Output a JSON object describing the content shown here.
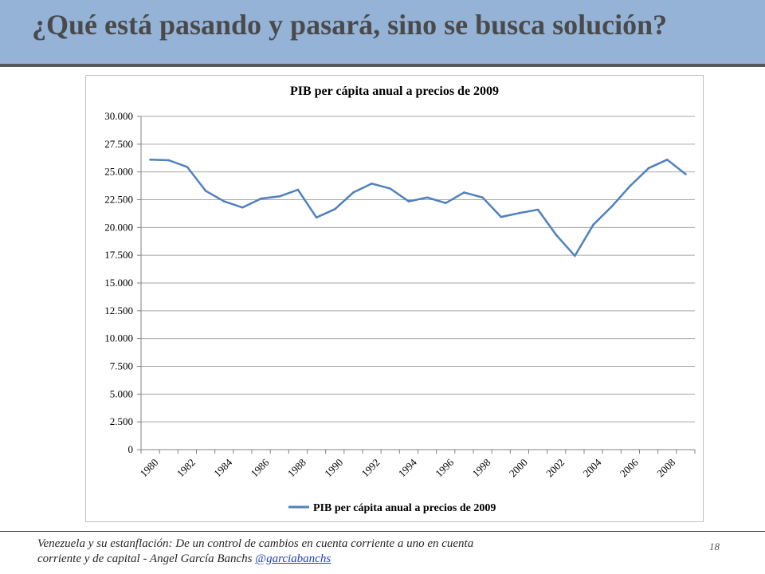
{
  "slide": {
    "title": "¿Qué está pasando y pasará, sino se busca solución?",
    "footer_text": "Venezuela y su estanflación: De un control de cambios en cuenta corriente a uno en cuenta corriente y de capital - Angel García Banchs ",
    "footer_link": "@garciabanchs",
    "page_number": "18"
  },
  "colors": {
    "header_band": "#95b3d7",
    "line": "#4f81bd"
  },
  "chart_data": {
    "type": "line",
    "title": "PIB per cápita anual a precios de 2009",
    "xlabel": "",
    "ylabel": "",
    "ylim": [
      0,
      30000
    ],
    "yticks": [
      0,
      2500,
      5000,
      7500,
      10000,
      12500,
      15000,
      17500,
      20000,
      22500,
      25000,
      27500,
      30000
    ],
    "ytick_labels": [
      "0",
      "2.500",
      "5.000",
      "7.500",
      "10.000",
      "12.500",
      "15.000",
      "17.500",
      "20.000",
      "22.500",
      "25.000",
      "27.500",
      "30.000"
    ],
    "xtick_labels": [
      "1980",
      "1982",
      "1984",
      "1986",
      "1988",
      "1990",
      "1992",
      "1994",
      "1996",
      "1998",
      "2000",
      "2002",
      "2004",
      "2006",
      "2008"
    ],
    "grid": true,
    "legend_position": "bottom",
    "x": [
      1980,
      1981,
      1982,
      1983,
      1984,
      1985,
      1986,
      1987,
      1988,
      1989,
      1990,
      1991,
      1992,
      1993,
      1994,
      1995,
      1996,
      1997,
      1998,
      1999,
      2000,
      2001,
      2002,
      2003,
      2004,
      2005,
      2006,
      2007,
      2008,
      2009
    ],
    "series": [
      {
        "name": "PIB per cápita anual a precios de 2009",
        "values": [
          26100,
          26050,
          25450,
          23300,
          22350,
          21800,
          22600,
          22800,
          23400,
          20900,
          21650,
          23150,
          23950,
          23500,
          22350,
          22700,
          22200,
          23150,
          22700,
          20950,
          21300,
          21600,
          19300,
          17450,
          20250,
          21900,
          23750,
          25350,
          26100,
          24800
        ]
      }
    ]
  }
}
